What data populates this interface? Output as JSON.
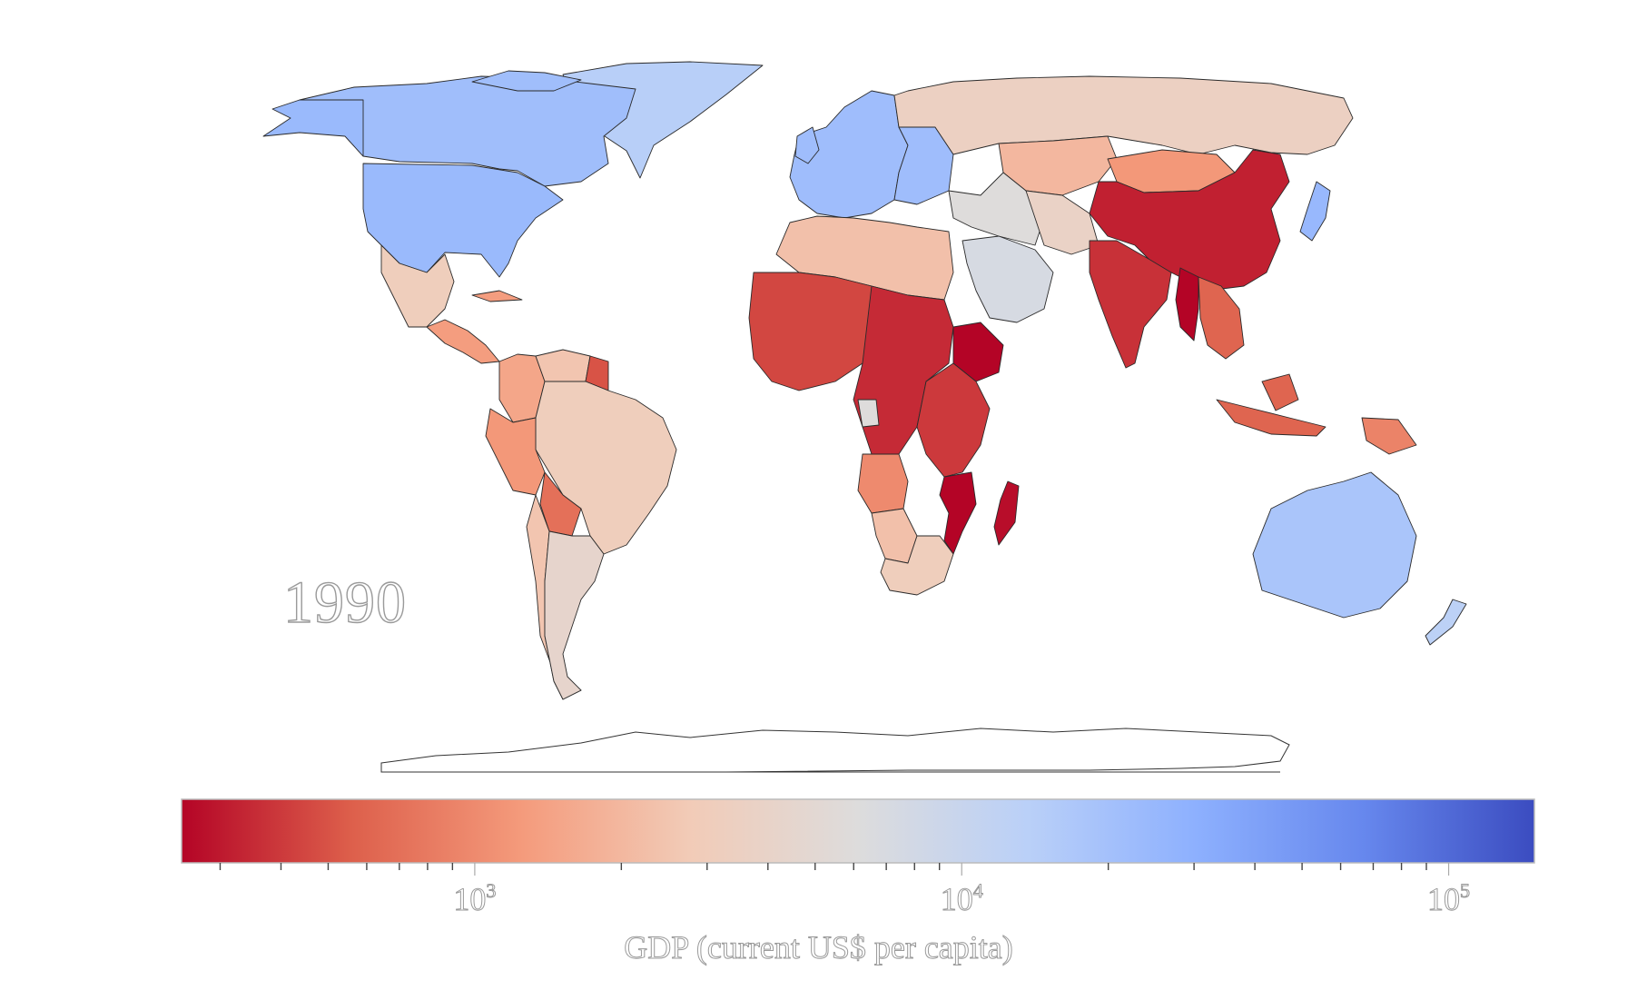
{
  "year": "1990",
  "colorbar": {
    "title": "GDP (current US$ per capita)",
    "scale": "log",
    "range": [
      250,
      150000
    ],
    "colormap": [
      "#b40426",
      "#dd5f4b",
      "#f49a7b",
      "#f2cbb7",
      "#dddcdc",
      "#bad0f8",
      "#8db0fe",
      "#6687ed",
      "#3b4cc0"
    ],
    "major_ticks": [
      {
        "value": 1000,
        "base": "10",
        "exp": "3"
      },
      {
        "value": 10000,
        "base": "10",
        "exp": "4"
      },
      {
        "value": 100000,
        "base": "10",
        "exp": "5"
      }
    ]
  },
  "regions": [
    {
      "name": "Canada",
      "gdp": 21500
    },
    {
      "name": "United States",
      "gdp": 23900
    },
    {
      "name": "Greenland",
      "gdp": 14000
    },
    {
      "name": "Mexico",
      "gdp": 3100
    },
    {
      "name": "Central America",
      "gdp": 1300
    },
    {
      "name": "Colombia",
      "gdp": 1500
    },
    {
      "name": "Venezuela",
      "gdp": 2500
    },
    {
      "name": "Guyana",
      "gdp": 500
    },
    {
      "name": "Brazil",
      "gdp": 3100
    },
    {
      "name": "Peru",
      "gdp": 1200
    },
    {
      "name": "Bolivia",
      "gdp": 700
    },
    {
      "name": "Argentina",
      "gdp": 4300
    },
    {
      "name": "Chile",
      "gdp": 2500
    },
    {
      "name": "Western Europe",
      "gdp": 22000
    },
    {
      "name": "Russia",
      "gdp": 3500
    },
    {
      "name": "Kazakhstan",
      "gdp": 2000
    },
    {
      "name": "Middle East",
      "gdp": 6000
    },
    {
      "name": "Saudi Arabia",
      "gdp": 7200
    },
    {
      "name": "Iran",
      "gdp": 3800
    },
    {
      "name": "China",
      "gdp": 320
    },
    {
      "name": "Mongolia",
      "gdp": 1200
    },
    {
      "name": "India",
      "gdp": 370
    },
    {
      "name": "Myanmar",
      "gdp": 150
    },
    {
      "name": "Southeast Asia",
      "gdp": 600
    },
    {
      "name": "Japan",
      "gdp": 25000
    },
    {
      "name": "Indonesia",
      "gdp": 600
    },
    {
      "name": "Papua New Guinea",
      "gdp": 900
    },
    {
      "name": "Australia",
      "gdp": 18000
    },
    {
      "name": "New Zealand",
      "gdp": 13000
    },
    {
      "name": "North Africa",
      "gdp": 2300
    },
    {
      "name": "West Africa",
      "gdp": 450
    },
    {
      "name": "Central Africa",
      "gdp": 350
    },
    {
      "name": "Ethiopia",
      "gdp": 250
    },
    {
      "name": "East Africa",
      "gdp": 400
    },
    {
      "name": "Angola",
      "gdp": 1000
    },
    {
      "name": "Namibia",
      "gdp": 2300
    },
    {
      "name": "Mozambique",
      "gdp": 180
    },
    {
      "name": "South Africa",
      "gdp": 3100
    },
    {
      "name": "Madagascar",
      "gdp": 270
    },
    {
      "name": "Gabon",
      "gdp": 6000
    }
  ]
}
